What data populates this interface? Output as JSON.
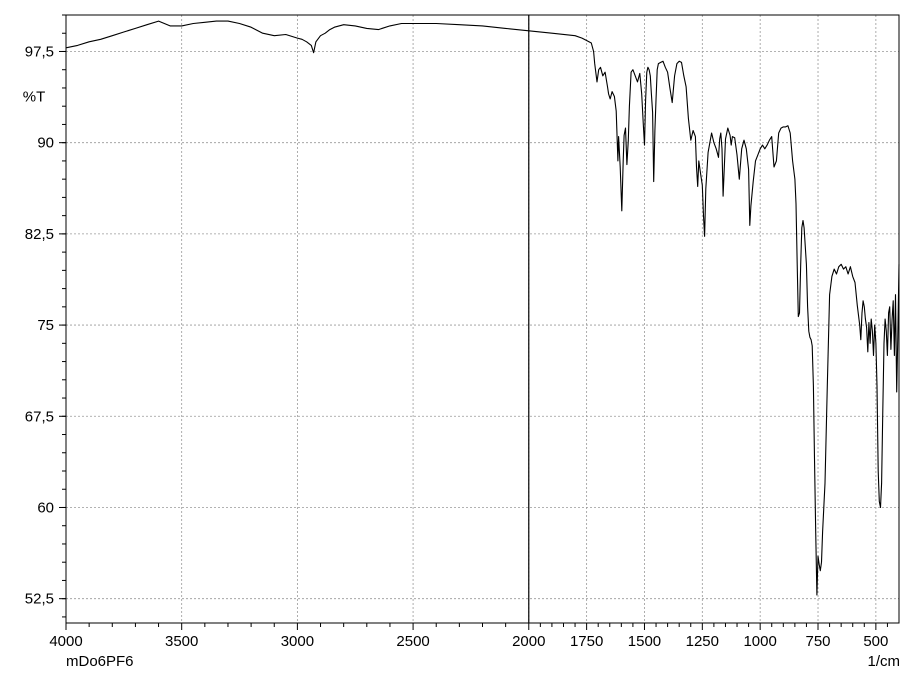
{
  "chart_data": {
    "type": "line",
    "sample_name": "mDo6PF6",
    "xlabel": "1/cm",
    "ylabel": "%T",
    "xlim": [
      4000,
      400
    ],
    "ylim": [
      50.5,
      100.5
    ],
    "x_reversed": true,
    "grid": true,
    "x_ticks": [
      4000,
      3500,
      3000,
      2500,
      2000,
      1750,
      1500,
      1250,
      1000,
      750,
      500
    ],
    "x_tick_labels": [
      "4000",
      "3500",
      "3000",
      "2500",
      "2000",
      "1750",
      "1500",
      "1250",
      "1000",
      "750",
      "500"
    ],
    "y_ticks": [
      97.5,
      90,
      82.5,
      75,
      67.5,
      60,
      52.5
    ],
    "y_tick_labels": [
      "97,5",
      "90",
      "82,5",
      "75",
      "67,5",
      "60",
      "52,5"
    ],
    "series": [
      {
        "x": [
          4000,
          3950,
          3900,
          3850,
          3800,
          3750,
          3700,
          3650,
          3600,
          3550,
          3500,
          3450,
          3400,
          3350,
          3300,
          3250,
          3200,
          3150,
          3100,
          3050,
          3000,
          2980,
          2960,
          2940,
          2930,
          2920,
          2900,
          2880,
          2860,
          2840,
          2800,
          2750,
          2700,
          2650,
          2600,
          2550,
          2500,
          2450,
          2400,
          2300,
          2200,
          2100,
          2000,
          1900,
          1800,
          1770,
          1750,
          1730,
          1720,
          1715,
          1705,
          1698,
          1690,
          1680,
          1670,
          1660,
          1655,
          1648,
          1640,
          1630,
          1622,
          1615,
          1612,
          1605,
          1598,
          1592,
          1588,
          1582,
          1576,
          1570,
          1565,
          1558,
          1550,
          1540,
          1530,
          1520,
          1512,
          1505,
          1500,
          1495,
          1490,
          1485,
          1480,
          1475,
          1470,
          1465,
          1460,
          1455,
          1450,
          1445,
          1440,
          1430,
          1420,
          1410,
          1400,
          1390,
          1380,
          1370,
          1360,
          1350,
          1340,
          1330,
          1320,
          1310,
          1300,
          1290,
          1280,
          1275,
          1270,
          1265,
          1258,
          1250,
          1245,
          1240,
          1235,
          1225,
          1210,
          1200,
          1190,
          1180,
          1175,
          1170,
          1165,
          1160,
          1150,
          1140,
          1130,
          1125,
          1120,
          1110,
          1100,
          1090,
          1080,
          1070,
          1060,
          1050,
          1045,
          1040,
          1030,
          1020,
          1010,
          1000,
          990,
          980,
          970,
          960,
          950,
          940,
          930,
          920,
          910,
          900,
          890,
          880,
          870,
          860,
          850,
          845,
          840,
          835,
          830,
          825,
          820,
          815,
          810,
          800,
          795,
          790,
          785,
          780,
          775,
          770,
          765,
          760,
          755,
          750,
          745,
          740,
          735,
          730,
          720,
          710,
          700,
          690,
          680,
          670,
          660,
          650,
          640,
          630,
          620,
          610,
          600,
          590,
          580,
          570,
          565,
          560,
          555,
          550,
          545,
          540,
          535,
          530,
          525,
          520,
          515,
          510,
          505,
          500,
          495,
          490,
          485,
          480,
          475,
          470,
          465,
          460,
          455,
          450,
          445,
          440,
          435,
          430,
          425,
          420,
          415,
          410,
          405,
          400
        ],
        "y": [
          97.8,
          98.0,
          98.3,
          98.5,
          98.8,
          99.1,
          99.4,
          99.7,
          100.0,
          99.6,
          99.6,
          99.8,
          99.9,
          100.0,
          100.0,
          99.8,
          99.5,
          99.0,
          98.8,
          98.9,
          98.6,
          98.5,
          98.3,
          98.0,
          97.4,
          98.3,
          98.8,
          99.0,
          99.3,
          99.5,
          99.7,
          99.6,
          99.4,
          99.3,
          99.6,
          99.8,
          99.8,
          99.8,
          99.8,
          99.7,
          99.6,
          99.4,
          99.2,
          99.0,
          98.8,
          98.6,
          98.4,
          98.2,
          97.5,
          96.5,
          95.0,
          96.0,
          96.2,
          95.5,
          95.8,
          94.6,
          94.0,
          93.6,
          94.2,
          93.8,
          92.6,
          88.5,
          90.5,
          88.0,
          84.4,
          88.5,
          90.6,
          91.2,
          88.2,
          90.2,
          93.0,
          95.8,
          96.0,
          95.5,
          95.0,
          95.7,
          94.0,
          91.5,
          89.8,
          93.5,
          95.8,
          96.2,
          96.0,
          95.5,
          94.0,
          92.5,
          86.8,
          91.0,
          93.5,
          96.0,
          96.5,
          96.6,
          96.7,
          96.2,
          95.8,
          94.5,
          93.3,
          95.5,
          96.5,
          96.7,
          96.6,
          95.5,
          94.6,
          92.0,
          90.2,
          91.0,
          90.5,
          88.0,
          86.4,
          88.5,
          87.5,
          86.5,
          84.0,
          82.3,
          86.2,
          89.2,
          90.8,
          90.0,
          89.5,
          88.8,
          90.3,
          90.8,
          89.5,
          85.6,
          90.3,
          91.2,
          90.6,
          89.8,
          90.5,
          90.4,
          89.0,
          87.0,
          89.5,
          90.2,
          89.5,
          87.8,
          83.2,
          84.8,
          86.8,
          88.5,
          89.0,
          89.5,
          89.8,
          89.5,
          89.8,
          90.2,
          90.5,
          88.0,
          88.5,
          90.8,
          91.2,
          91.3,
          91.3,
          91.4,
          90.8,
          88.5,
          87.0,
          85.0,
          80.0,
          75.7,
          76.0,
          80.0,
          83.0,
          83.6,
          83.0,
          80.0,
          76.5,
          74.5,
          74.0,
          73.8,
          73.3,
          70.0,
          64.0,
          58.0,
          52.8,
          56.0,
          55.3,
          54.8,
          55.5,
          58.0,
          62.0,
          70.0,
          77.5,
          79.0,
          79.6,
          79.2,
          79.8,
          80.0,
          79.6,
          79.8,
          79.2,
          79.8,
          79.0,
          78.5,
          76.6,
          75.0,
          73.8,
          76.0,
          77.0,
          76.5,
          75.5,
          74.8,
          72.8,
          75.2,
          73.5,
          75.5,
          74.5,
          72.5,
          75.0,
          73.5,
          70.0,
          63.0,
          60.5,
          60.0,
          62.0,
          68.0,
          73.5,
          75.5,
          74.5,
          72.5,
          76.0,
          76.5,
          73.0,
          75.5,
          77.0,
          72.5,
          77.5,
          69.5,
          74.0,
          80.0
        ]
      }
    ]
  }
}
